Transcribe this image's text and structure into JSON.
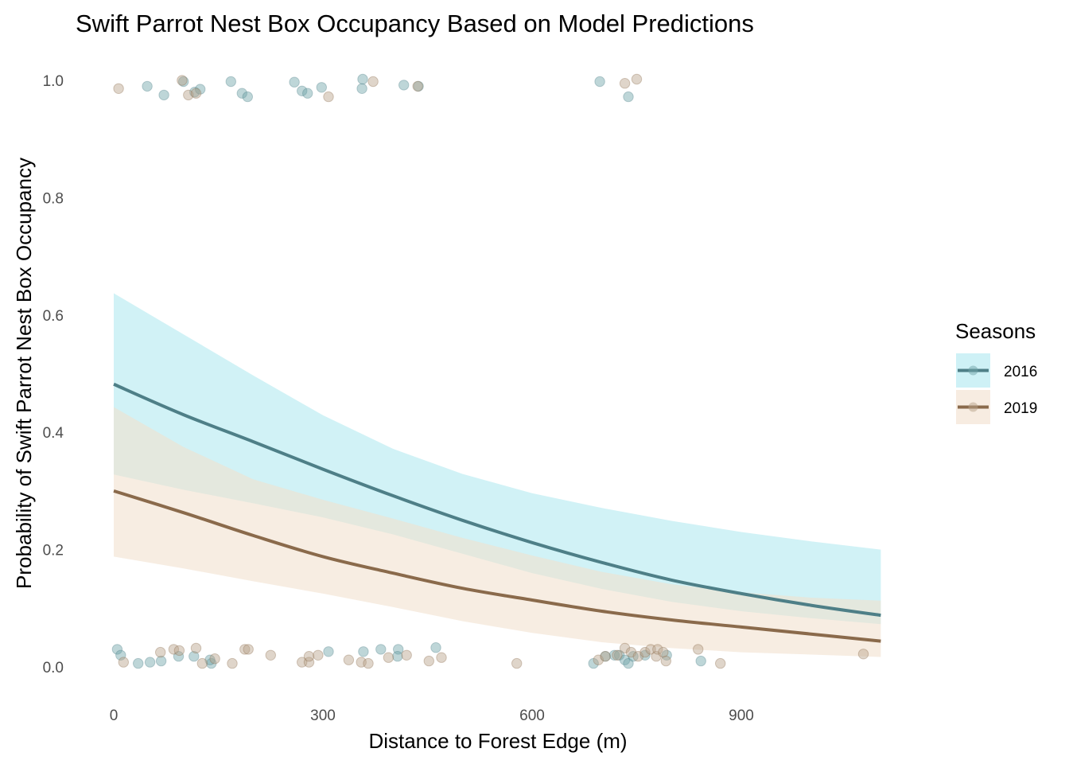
{
  "chart_data": {
    "type": "line",
    "title": "Swift Parrot Nest Box Occupancy Based on Model Predictions",
    "xlabel": "Distance to Forest Edge (m)",
    "ylabel": "Probability of Swift Parrot Nest Box Occupancy",
    "xlim": [
      -20,
      1105
    ],
    "ylim": [
      -0.05,
      1.04
    ],
    "x_ticks": [
      0,
      300,
      600,
      900
    ],
    "x_tick_labels": [
      "0",
      "300",
      "600",
      "900"
    ],
    "y_ticks": [
      0.0,
      0.2,
      0.4,
      0.6,
      0.8,
      1.0
    ],
    "y_tick_labels": [
      "0.0",
      "0.2",
      "0.4",
      "0.6",
      "0.8",
      "1.0"
    ],
    "grid": false,
    "legend": {
      "title": "Seasons",
      "position": "right"
    },
    "series": [
      {
        "name": "2016",
        "line_color": "#4e7f87",
        "ribbon_color": "#a6e6ee",
        "point_color": "#6fa3a8",
        "curve": {
          "x": [
            0,
            100,
            200,
            300,
            400,
            500,
            600,
            700,
            800,
            900,
            1000,
            1100
          ],
          "y": [
            0.482,
            0.43,
            0.384,
            0.337,
            0.292,
            0.25,
            0.212,
            0.178,
            0.148,
            0.125,
            0.105,
            0.088
          ],
          "lower": [
            0.328,
            0.302,
            0.279,
            0.255,
            0.226,
            0.193,
            0.16,
            0.133,
            0.111,
            0.095,
            0.083,
            0.073
          ],
          "upper": [
            0.637,
            0.567,
            0.497,
            0.429,
            0.372,
            0.329,
            0.296,
            0.271,
            0.249,
            0.23,
            0.214,
            0.2
          ]
        },
        "points": [
          {
            "x": 5,
            "y": 0.03
          },
          {
            "x": 10,
            "y": 0.02
          },
          {
            "x": 35,
            "y": 0.006
          },
          {
            "x": 52,
            "y": 0.008
          },
          {
            "x": 68,
            "y": 0.01
          },
          {
            "x": 93,
            "y": 0.018
          },
          {
            "x": 115,
            "y": 0.018
          },
          {
            "x": 140,
            "y": 0.006
          },
          {
            "x": 138,
            "y": 0.012
          },
          {
            "x": 308,
            "y": 0.026
          },
          {
            "x": 358,
            "y": 0.026
          },
          {
            "x": 383,
            "y": 0.03
          },
          {
            "x": 408,
            "y": 0.03
          },
          {
            "x": 407,
            "y": 0.018
          },
          {
            "x": 462,
            "y": 0.033
          },
          {
            "x": 688,
            "y": 0.006
          },
          {
            "x": 705,
            "y": 0.018
          },
          {
            "x": 718,
            "y": 0.02
          },
          {
            "x": 725,
            "y": 0.02
          },
          {
            "x": 733,
            "y": 0.012
          },
          {
            "x": 738,
            "y": 0.006
          },
          {
            "x": 745,
            "y": 0.018
          },
          {
            "x": 762,
            "y": 0.02
          },
          {
            "x": 793,
            "y": 0.02
          },
          {
            "x": 842,
            "y": 0.01
          },
          {
            "x": 48,
            "y": 0.99
          },
          {
            "x": 72,
            "y": 0.975
          },
          {
            "x": 100,
            "y": 0.998
          },
          {
            "x": 116,
            "y": 0.98
          },
          {
            "x": 124,
            "y": 0.985
          },
          {
            "x": 168,
            "y": 0.998
          },
          {
            "x": 184,
            "y": 0.978
          },
          {
            "x": 192,
            "y": 0.972
          },
          {
            "x": 259,
            "y": 0.997
          },
          {
            "x": 270,
            "y": 0.982
          },
          {
            "x": 278,
            "y": 0.978
          },
          {
            "x": 298,
            "y": 0.988
          },
          {
            "x": 357,
            "y": 1.002
          },
          {
            "x": 356,
            "y": 0.986
          },
          {
            "x": 416,
            "y": 0.992
          },
          {
            "x": 437,
            "y": 0.99
          },
          {
            "x": 697,
            "y": 0.998
          },
          {
            "x": 738,
            "y": 0.972
          }
        ]
      },
      {
        "name": "2019",
        "line_color": "#8a6a4b",
        "ribbon_color": "#f1e0cd",
        "point_color": "#b8a189",
        "curve": {
          "x": [
            0,
            100,
            200,
            300,
            400,
            500,
            600,
            700,
            800,
            900,
            1000,
            1100
          ],
          "y": [
            0.3,
            0.263,
            0.224,
            0.188,
            0.16,
            0.134,
            0.114,
            0.095,
            0.08,
            0.068,
            0.056,
            0.044
          ],
          "lower": [
            0.188,
            0.168,
            0.146,
            0.125,
            0.102,
            0.078,
            0.058,
            0.042,
            0.032,
            0.025,
            0.021,
            0.017
          ],
          "upper": [
            0.443,
            0.375,
            0.32,
            0.285,
            0.253,
            0.22,
            0.19,
            0.162,
            0.141,
            0.127,
            0.118,
            0.113
          ]
        },
        "points": [
          {
            "x": 14,
            "y": 0.008
          },
          {
            "x": 67,
            "y": 0.025
          },
          {
            "x": 86,
            "y": 0.03
          },
          {
            "x": 94,
            "y": 0.028
          },
          {
            "x": 118,
            "y": 0.032
          },
          {
            "x": 127,
            "y": 0.006
          },
          {
            "x": 145,
            "y": 0.014
          },
          {
            "x": 170,
            "y": 0.006
          },
          {
            "x": 188,
            "y": 0.03
          },
          {
            "x": 193,
            "y": 0.03
          },
          {
            "x": 225,
            "y": 0.02
          },
          {
            "x": 270,
            "y": 0.008
          },
          {
            "x": 280,
            "y": 0.008
          },
          {
            "x": 280,
            "y": 0.018
          },
          {
            "x": 293,
            "y": 0.02
          },
          {
            "x": 337,
            "y": 0.012
          },
          {
            "x": 355,
            "y": 0.008
          },
          {
            "x": 365,
            "y": 0.006
          },
          {
            "x": 394,
            "y": 0.016
          },
          {
            "x": 420,
            "y": 0.02
          },
          {
            "x": 452,
            "y": 0.01
          },
          {
            "x": 470,
            "y": 0.016
          },
          {
            "x": 578,
            "y": 0.006
          },
          {
            "x": 695,
            "y": 0.012
          },
          {
            "x": 705,
            "y": 0.018
          },
          {
            "x": 722,
            "y": 0.02
          },
          {
            "x": 733,
            "y": 0.032
          },
          {
            "x": 742,
            "y": 0.025
          },
          {
            "x": 752,
            "y": 0.018
          },
          {
            "x": 762,
            "y": 0.025
          },
          {
            "x": 770,
            "y": 0.03
          },
          {
            "x": 778,
            "y": 0.018
          },
          {
            "x": 780,
            "y": 0.03
          },
          {
            "x": 788,
            "y": 0.025
          },
          {
            "x": 792,
            "y": 0.01
          },
          {
            "x": 838,
            "y": 0.03
          },
          {
            "x": 870,
            "y": 0.006
          },
          {
            "x": 1075,
            "y": 0.022
          },
          {
            "x": 7,
            "y": 0.986
          },
          {
            "x": 98,
            "y": 1.0
          },
          {
            "x": 107,
            "y": 0.975
          },
          {
            "x": 118,
            "y": 0.978
          },
          {
            "x": 308,
            "y": 0.972
          },
          {
            "x": 372,
            "y": 0.998
          },
          {
            "x": 436,
            "y": 0.99
          },
          {
            "x": 733,
            "y": 0.995
          },
          {
            "x": 750,
            "y": 1.002
          }
        ]
      }
    ]
  }
}
